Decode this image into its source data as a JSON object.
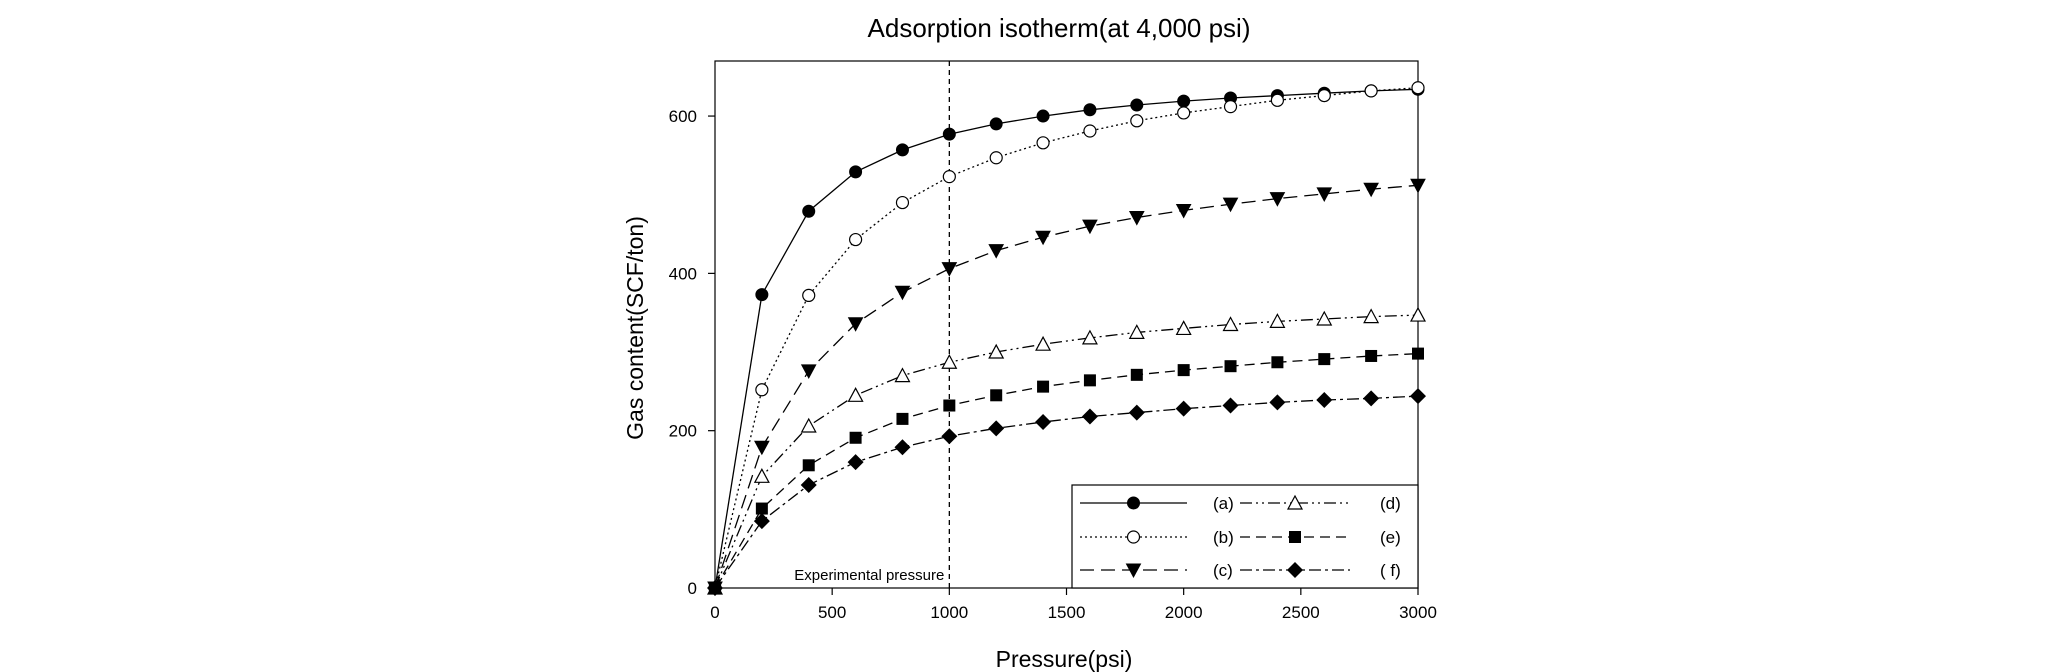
{
  "chart_data": {
    "type": "line",
    "title": "Adsorption isotherm(at 4,000 psi)",
    "xlabel": "Pressure(psi)",
    "ylabel": "Gas content(SCF/ton)",
    "xlim": [
      0,
      3000
    ],
    "ylim": [
      0,
      670
    ],
    "xticks": [
      0,
      500,
      1000,
      1500,
      2000,
      2500,
      3000
    ],
    "yticks": [
      0,
      200,
      400,
      600
    ],
    "grid": false,
    "legend_position": "bottom-right",
    "reference_line": {
      "x": 1000,
      "style": "dashed",
      "label": "Experimental pressure"
    },
    "x": [
      0,
      200,
      400,
      600,
      800,
      1000,
      1200,
      1400,
      1600,
      1800,
      2000,
      2200,
      2400,
      2600,
      2800,
      3000
    ],
    "series": [
      {
        "name": "(a)",
        "marker": "filled-circle",
        "line": "solid",
        "values": [
          0,
          373,
          479,
          529,
          557,
          577,
          590,
          600,
          608,
          614,
          619,
          623,
          626,
          629,
          632,
          634
        ]
      },
      {
        "name": "(b)",
        "marker": "open-circle",
        "line": "dotted",
        "values": [
          0,
          252,
          372,
          443,
          490,
          523,
          547,
          566,
          581,
          594,
          604,
          612,
          620,
          626,
          632,
          636
        ]
      },
      {
        "name": "(c)",
        "marker": "filled-triangle-down",
        "line": "long-dash",
        "values": [
          0,
          179,
          276,
          336,
          376,
          406,
          429,
          446,
          460,
          471,
          480,
          488,
          495,
          501,
          507,
          512
        ]
      },
      {
        "name": "(d)",
        "marker": "open-triangle-up",
        "line": "dash-dot-dot",
        "values": [
          0,
          142,
          206,
          245,
          270,
          287,
          300,
          310,
          318,
          325,
          330,
          335,
          339,
          342,
          345,
          347
        ]
      },
      {
        "name": "(e)",
        "marker": "filled-square",
        "line": "dash",
        "values": [
          0,
          101,
          156,
          191,
          215,
          232,
          245,
          256,
          264,
          271,
          277,
          282,
          287,
          291,
          295,
          298
        ]
      },
      {
        "name": "( f)",
        "marker": "filled-diamond",
        "line": "dash-dot",
        "values": [
          0,
          85,
          131,
          160,
          179,
          193,
          203,
          211,
          218,
          223,
          228,
          232,
          236,
          239,
          241,
          244
        ]
      }
    ]
  }
}
